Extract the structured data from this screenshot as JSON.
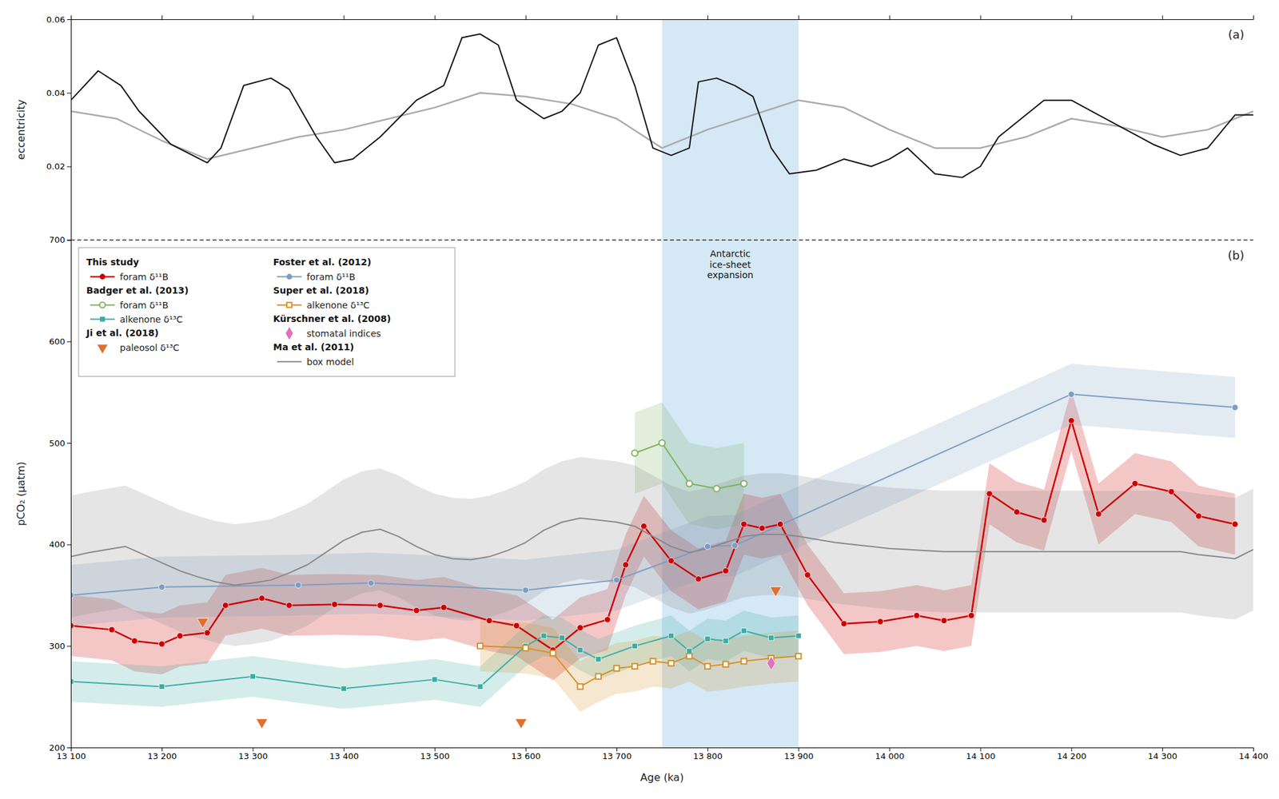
{
  "chart_data": [
    {
      "type": "line",
      "ylabel": "eccentricity",
      "annotations": [
        "(a)"
      ],
      "xlim": [
        13100,
        14400
      ],
      "xticks": [
        13100,
        13200,
        13300,
        13400,
        13500,
        13600,
        13700,
        13800,
        13900,
        14000,
        14100,
        14200,
        14300,
        14400
      ],
      "ylim": [
        0.0,
        0.06
      ],
      "yticks": [
        0.02,
        0.04,
        0.06
      ],
      "tick_labels": "y",
      "shaded_region": {
        "x": [
          13750,
          13900
        ],
        "color": "#b8d8f0"
      },
      "series": [
        {
          "color": "#aaaaaa",
          "x": [
            13100,
            13150,
            13200,
            13250,
            13300,
            13350,
            13400,
            13450,
            13500,
            13550,
            13600,
            13650,
            13700,
            13750,
            13800,
            13850,
            13900,
            13950,
            14000,
            14050,
            14100,
            14150,
            14200,
            14250,
            14300,
            14350,
            14400
          ],
          "values": [
            0.035,
            0.033,
            0.027,
            0.022,
            0.025,
            0.028,
            0.03,
            0.033,
            0.036,
            0.04,
            0.039,
            0.037,
            0.033,
            0.025,
            0.03,
            0.034,
            0.038,
            0.036,
            0.03,
            0.025,
            0.025,
            0.028,
            0.033,
            0.031,
            0.028,
            0.03,
            0.035
          ]
        },
        {
          "color": "#111111",
          "x": [
            13100,
            13130,
            13155,
            13175,
            13210,
            13250,
            13265,
            13290,
            13320,
            13340,
            13370,
            13390,
            13410,
            13440,
            13460,
            13480,
            13510,
            13530,
            13550,
            13570,
            13590,
            13620,
            13640,
            13660,
            13680,
            13700,
            13720,
            13740,
            13760,
            13780,
            13790,
            13810,
            13830,
            13850,
            13870,
            13890,
            13920,
            13950,
            13980,
            14000,
            14020,
            14050,
            14080,
            14100,
            14120,
            14150,
            14170,
            14200,
            14230,
            14260,
            14290,
            14320,
            14350,
            14380,
            14400
          ],
          "values": [
            0.038,
            0.046,
            0.042,
            0.035,
            0.026,
            0.021,
            0.025,
            0.042,
            0.044,
            0.041,
            0.028,
            0.021,
            0.022,
            0.028,
            0.033,
            0.038,
            0.042,
            0.055,
            0.056,
            0.053,
            0.038,
            0.033,
            0.035,
            0.04,
            0.053,
            0.055,
            0.042,
            0.025,
            0.023,
            0.025,
            0.043,
            0.044,
            0.042,
            0.039,
            0.025,
            0.018,
            0.019,
            0.022,
            0.02,
            0.022,
            0.025,
            0.018,
            0.017,
            0.02,
            0.028,
            0.034,
            0.038,
            0.038,
            0.034,
            0.03,
            0.026,
            0.023,
            0.025,
            0.034,
            0.034
          ]
        }
      ]
    },
    {
      "type": "line",
      "xlabel": "Age (ka)",
      "ylabel": "pCO₂ (µatm)",
      "annotations": [
        "(b)"
      ],
      "xlim": [
        13100,
        14400
      ],
      "xticks": [
        {
          "value": 13100,
          "label": "13 100"
        },
        {
          "value": 13200,
          "label": "13 200"
        },
        {
          "value": 13300,
          "label": "13 300"
        },
        {
          "value": 13400,
          "label": "13 400"
        },
        {
          "value": 13500,
          "label": "13 500"
        },
        {
          "value": 13600,
          "label": "13 600"
        },
        {
          "value": 13700,
          "label": "13 700"
        },
        {
          "value": 13800,
          "label": "13 800"
        },
        {
          "value": 13900,
          "label": "13 900"
        },
        {
          "value": 14000,
          "label": "14 000"
        },
        {
          "value": 14100,
          "label": "14 100"
        },
        {
          "value": 14200,
          "label": "14 200"
        },
        {
          "value": 14300,
          "label": "14 300"
        },
        {
          "value": 14400,
          "label": "14 400"
        }
      ],
      "ylim": [
        200,
        700
      ],
      "yticks": [
        200,
        300,
        400,
        500,
        600,
        700
      ],
      "legend": "top-left",
      "shaded_region": {
        "x": [
          13750,
          13900
        ],
        "color": "#b8d8f0",
        "label": "Antarctic\nice-sheet\nexpansion"
      },
      "series": [
        {
          "group": "This study",
          "name": "foram δ¹¹B",
          "type": "line",
          "marker": "circle",
          "color": "#cc0000",
          "x": [
            13100,
            13145,
            13170,
            13200,
            13220,
            13250,
            13270,
            13310,
            13340,
            13390,
            13440,
            13480,
            13510,
            13560,
            13590,
            13630,
            13660,
            13690,
            13710,
            13730,
            13760,
            13790,
            13820,
            13840,
            13860,
            13880,
            13910,
            13950,
            13990,
            14030,
            14060,
            14090,
            14110,
            14140,
            14170,
            14200,
            14230,
            14270,
            14310,
            14340,
            14380
          ],
          "values": [
            320,
            316,
            305,
            302,
            310,
            313,
            340,
            347,
            340,
            341,
            340,
            335,
            338,
            325,
            320,
            296,
            318,
            326,
            380,
            418,
            384,
            366,
            374,
            420,
            416,
            420,
            370,
            322,
            324,
            330,
            325,
            330,
            450,
            432,
            424,
            522,
            430,
            460,
            452,
            428,
            420
          ],
          "error": [
            30,
            30,
            30,
            30,
            30,
            30,
            30,
            30,
            30,
            30,
            30,
            30,
            30,
            30,
            30,
            30,
            30,
            30,
            30,
            30,
            30,
            30,
            30,
            30,
            30,
            30,
            30,
            30,
            30,
            30,
            30,
            30,
            30,
            30,
            30,
            30,
            30,
            30,
            30,
            30,
            30
          ]
        },
        {
          "group": "Badger et al. (2013)",
          "name": "foram δ¹¹B",
          "type": "line",
          "marker": "open-circle",
          "color": "#7db35a",
          "x": [
            13720,
            13750,
            13780,
            13810,
            13840
          ],
          "values": [
            490,
            500,
            460,
            455,
            460
          ],
          "error": [
            40,
            40,
            40,
            40,
            40
          ]
        },
        {
          "group": "Badger et al. (2013)",
          "name": "alkenone δ¹³C",
          "type": "line",
          "marker": "square",
          "color": "#3aada5",
          "x": [
            13100,
            13200,
            13300,
            13400,
            13500,
            13550,
            13600,
            13620,
            13640,
            13660,
            13680,
            13720,
            13760,
            13780,
            13800,
            13820,
            13840,
            13870,
            13900
          ],
          "values": [
            265,
            260,
            270,
            258,
            267,
            260,
            300,
            310,
            308,
            296,
            287,
            300,
            310,
            295,
            307,
            305,
            315,
            308,
            310
          ],
          "error": [
            20,
            20,
            20,
            20,
            20,
            20,
            20,
            20,
            20,
            20,
            20,
            20,
            20,
            20,
            20,
            20,
            20,
            20,
            20
          ]
        },
        {
          "group": "Ji et al. (2018)",
          "name": "paleosol δ¹³C",
          "type": "scatter",
          "marker": "triangle-down",
          "color": "#e07030",
          "x": [
            13245,
            13310,
            13595,
            13875
          ],
          "values": [
            324,
            225,
            225,
            355
          ]
        },
        {
          "group": "Foster et al. (2012)",
          "name": "foram δ¹¹B",
          "type": "line",
          "marker": "circle",
          "color": "#7b9ec4",
          "x": [
            13100,
            13200,
            13350,
            13430,
            13600,
            13700,
            13800,
            13830,
            14200,
            14380
          ],
          "values": [
            350,
            358,
            360,
            362,
            355,
            365,
            398,
            399,
            548,
            535
          ],
          "error": [
            30,
            30,
            30,
            30,
            30,
            30,
            30,
            30,
            30,
            30
          ]
        },
        {
          "group": "Super et al. (2018)",
          "name": "alkenone δ¹³C",
          "type": "line",
          "marker": "open-square",
          "color": "#d4902a",
          "x": [
            13550,
            13600,
            13630,
            13660,
            13680,
            13700,
            13720,
            13740,
            13760,
            13780,
            13800,
            13820,
            13840,
            13870,
            13900
          ],
          "values": [
            300,
            298,
            293,
            260,
            270,
            278,
            280,
            285,
            283,
            290,
            280,
            282,
            285,
            288,
            290
          ],
          "error": [
            25,
            25,
            25,
            25,
            25,
            25,
            25,
            25,
            25,
            25,
            25,
            25,
            25,
            25,
            25
          ]
        },
        {
          "group": "Kürschner et al. (2008)",
          "name": "stomatal indices",
          "type": "scatter",
          "marker": "diamond",
          "color": "#e070c0",
          "x": [
            13870
          ],
          "values": [
            283
          ]
        },
        {
          "group": "Ma et al. (2011)",
          "name": "box model",
          "type": "line",
          "color": "#888888",
          "x": [
            13100,
            13120,
            13140,
            13160,
            13180,
            13200,
            13220,
            13240,
            13260,
            13280,
            13300,
            13320,
            13340,
            13360,
            13380,
            13400,
            13420,
            13440,
            13460,
            13480,
            13500,
            13520,
            13540,
            13560,
            13580,
            13600,
            13620,
            13640,
            13660,
            13680,
            13700,
            13720,
            13740,
            13760,
            13780,
            13800,
            13820,
            13840,
            13860,
            13880,
            13900,
            13920,
            13940,
            13960,
            13980,
            14000,
            14020,
            14040,
            14060,
            14080,
            14100,
            14120,
            14140,
            14160,
            14180,
            14200,
            14220,
            14240,
            14260,
            14280,
            14300,
            14320,
            14340,
            14360,
            14380,
            14400
          ],
          "values": [
            388,
            392,
            395,
            398,
            390,
            382,
            374,
            368,
            363,
            360,
            362,
            365,
            372,
            380,
            392,
            404,
            412,
            415,
            408,
            398,
            390,
            386,
            385,
            388,
            394,
            402,
            414,
            422,
            426,
            424,
            422,
            418,
            408,
            398,
            392,
            396,
            402,
            408,
            410,
            410,
            408,
            405,
            402,
            400,
            398,
            396,
            395,
            394,
            393,
            393,
            393,
            393,
            393,
            393,
            393,
            393,
            393,
            393,
            393,
            393,
            393,
            393,
            390,
            388,
            386,
            395
          ],
          "error": 60
        }
      ]
    }
  ]
}
